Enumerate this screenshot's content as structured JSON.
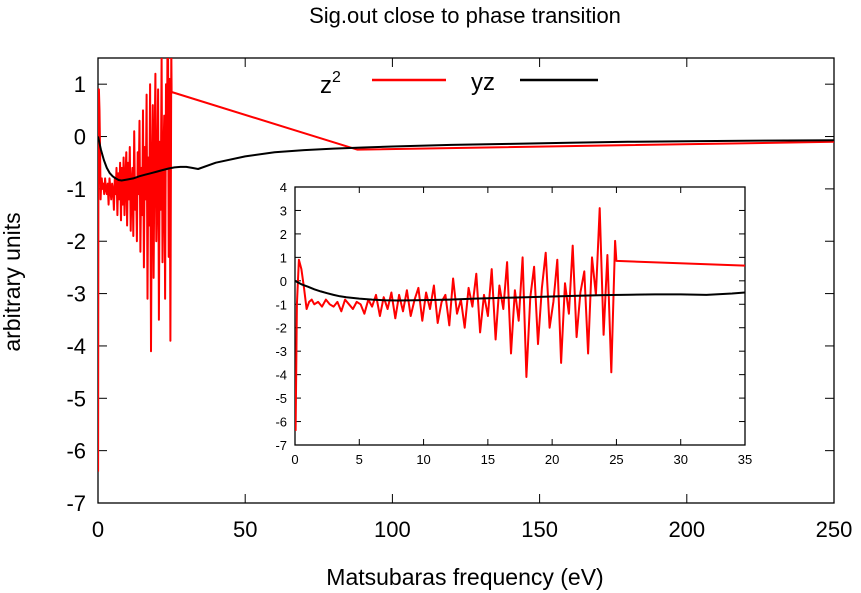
{
  "chart_data": [
    {
      "type": "line",
      "title": "Sig.out close to phase transition",
      "xlabel": "Matsubaras frequency (eV)",
      "ylabel": "arbitrary units",
      "xlim": [
        0,
        250
      ],
      "ylim": [
        -7,
        1.5
      ],
      "xticks": [
        "0",
        "50",
        "100",
        "150",
        "200",
        "250"
      ],
      "yticks": [
        "-7",
        "-6",
        "-5",
        "-4",
        "-3",
        "-2",
        "-1",
        "0",
        "1"
      ],
      "grid": false,
      "legend_position": "top",
      "series": [
        {
          "name": "z",
          "name_superscript": "2",
          "color": "#ff0000",
          "x": [
            0.05,
            0.15,
            0.3,
            0.5,
            0.7,
            0.9,
            1.1,
            1.3,
            1.5,
            1.8,
            2.1,
            2.4,
            2.7,
            3.0,
            3.3,
            3.6,
            3.9,
            4.2,
            4.5,
            4.8,
            5.1,
            5.4,
            5.7,
            6.0,
            6.3,
            6.6,
            6.9,
            7.2,
            7.5,
            7.8,
            8.1,
            8.4,
            8.7,
            9.0,
            9.3,
            9.6,
            9.9,
            10.2,
            10.5,
            10.8,
            11.1,
            11.4,
            11.7,
            12.0,
            12.3,
            12.6,
            12.9,
            13.2,
            13.5,
            13.8,
            14.1,
            14.4,
            14.7,
            15.0,
            15.3,
            15.6,
            15.9,
            16.2,
            16.5,
            16.8,
            17.1,
            17.4,
            17.7,
            18.0,
            18.3,
            18.6,
            18.9,
            19.2,
            19.5,
            19.8,
            20.1,
            20.4,
            20.7,
            21.0,
            21.3,
            21.6,
            21.9,
            22.2,
            22.5,
            22.8,
            23.1,
            23.4,
            23.7,
            24.0,
            24.3,
            24.6,
            24.9,
            25.0,
            88.0,
            250.0
          ],
          "y": [
            -6.4,
            -1.0,
            0.9,
            0.5,
            -0.3,
            -1.2,
            -0.9,
            -0.8,
            -1.0,
            -0.9,
            -1.1,
            -0.8,
            -1.0,
            -1.1,
            -0.9,
            -1.3,
            -0.8,
            -1.0,
            -1.2,
            -0.9,
            -1.0,
            -1.4,
            -0.8,
            -1.1,
            -0.6,
            -1.5,
            -0.7,
            -1.2,
            -0.5,
            -1.6,
            -0.6,
            -1.3,
            -0.4,
            -1.5,
            -0.8,
            -0.3,
            -1.7,
            -0.5,
            -1.2,
            -0.2,
            -1.8,
            -0.9,
            -0.6,
            -1.9,
            0.1,
            -1.4,
            -0.8,
            -2.0,
            -0.3,
            -1.1,
            0.3,
            -2.2,
            -0.6,
            -1.5,
            0.5,
            -2.5,
            -0.2,
            -1.2,
            0.8,
            -3.1,
            -0.4,
            -1.7,
            1.0,
            -4.1,
            -0.7,
            0.6,
            -2.7,
            -0.3,
            1.2,
            -2.0,
            -0.9,
            0.9,
            -3.5,
            -0.1,
            -1.4,
            1.5,
            -2.4,
            -0.5,
            0.4,
            -3.1,
            1.0,
            -0.6,
            3.1,
            -2.3,
            1.1,
            -3.9,
            1.7,
            0.85,
            -0.25,
            -0.1
          ]
        },
        {
          "name": "yz",
          "color": "#000000",
          "x": [
            0.0,
            1,
            2,
            3,
            4,
            5,
            6,
            7,
            8,
            10,
            12,
            14,
            16,
            18,
            20,
            22,
            24,
            26,
            28,
            30,
            32,
            34,
            40,
            50,
            60,
            70,
            80,
            90,
            100,
            120,
            140,
            160,
            180,
            200,
            220,
            250
          ],
          "y": [
            0.0,
            -0.25,
            -0.45,
            -0.6,
            -0.7,
            -0.76,
            -0.8,
            -0.83,
            -0.84,
            -0.82,
            -0.8,
            -0.76,
            -0.73,
            -0.7,
            -0.67,
            -0.64,
            -0.61,
            -0.59,
            -0.58,
            -0.58,
            -0.6,
            -0.62,
            -0.5,
            -0.38,
            -0.3,
            -0.26,
            -0.23,
            -0.21,
            -0.19,
            -0.16,
            -0.14,
            -0.12,
            -0.1,
            -0.09,
            -0.08,
            -0.07
          ]
        }
      ]
    },
    {
      "type": "line",
      "title": "",
      "xlabel": "",
      "ylabel": "",
      "xlim": [
        0,
        35
      ],
      "ylim": [
        -7,
        4
      ],
      "xticks": [
        "0",
        "5",
        "10",
        "15",
        "20",
        "25",
        "30",
        "35"
      ],
      "yticks": [
        "-7",
        "-6",
        "-5",
        "-4",
        "-3",
        "-2",
        "-1",
        "0",
        "1",
        "2",
        "3",
        "4"
      ],
      "grid": false,
      "series": [
        {
          "color": "#ff0000",
          "x": [
            0.05,
            0.15,
            0.3,
            0.5,
            0.7,
            0.9,
            1.1,
            1.3,
            1.5,
            1.8,
            2.1,
            2.4,
            2.7,
            3.0,
            3.3,
            3.6,
            3.9,
            4.2,
            4.5,
            4.8,
            5.1,
            5.4,
            5.7,
            6.0,
            6.3,
            6.6,
            6.9,
            7.2,
            7.5,
            7.8,
            8.1,
            8.4,
            8.7,
            9.0,
            9.3,
            9.6,
            9.9,
            10.2,
            10.5,
            10.8,
            11.1,
            11.4,
            11.7,
            12.0,
            12.3,
            12.6,
            12.9,
            13.2,
            13.5,
            13.8,
            14.1,
            14.4,
            14.7,
            15.0,
            15.3,
            15.6,
            15.9,
            16.2,
            16.5,
            16.8,
            17.1,
            17.4,
            17.7,
            18.0,
            18.3,
            18.6,
            18.9,
            19.2,
            19.5,
            19.8,
            20.1,
            20.4,
            20.7,
            21.0,
            21.3,
            21.6,
            21.9,
            22.2,
            22.5,
            22.8,
            23.1,
            23.4,
            23.7,
            24.0,
            24.3,
            24.6,
            24.9,
            25.0,
            35.0
          ],
          "y": [
            -6.4,
            -1.0,
            0.9,
            0.5,
            -0.3,
            -1.2,
            -0.9,
            -0.8,
            -1.0,
            -0.9,
            -1.1,
            -0.8,
            -1.0,
            -1.1,
            -0.9,
            -1.3,
            -0.8,
            -1.0,
            -1.2,
            -0.9,
            -1.0,
            -1.4,
            -0.8,
            -1.1,
            -0.6,
            -1.5,
            -0.7,
            -1.2,
            -0.5,
            -1.6,
            -0.6,
            -1.3,
            -0.4,
            -1.5,
            -0.8,
            -0.3,
            -1.7,
            -0.5,
            -1.2,
            -0.2,
            -1.8,
            -0.9,
            -0.6,
            -1.9,
            0.1,
            -1.4,
            -0.8,
            -2.0,
            -0.3,
            -1.1,
            0.3,
            -2.2,
            -0.6,
            -1.5,
            0.5,
            -2.5,
            -0.2,
            -1.2,
            0.8,
            -3.1,
            -0.4,
            -1.7,
            1.0,
            -4.1,
            -0.7,
            0.6,
            -2.7,
            -0.3,
            1.2,
            -2.0,
            -0.9,
            0.9,
            -3.5,
            -0.1,
            -1.4,
            1.5,
            -2.4,
            -0.5,
            0.4,
            -3.1,
            1.0,
            -0.6,
            3.1,
            -2.3,
            1.1,
            -3.9,
            1.7,
            0.85,
            0.65
          ]
        },
        {
          "color": "#000000",
          "x": [
            0.0,
            0.5,
            1,
            1.5,
            2,
            2.5,
            3,
            3.5,
            4,
            5,
            6,
            7,
            8,
            10,
            12,
            14,
            16,
            18,
            20,
            22,
            24,
            26,
            28,
            30,
            32,
            34,
            35
          ],
          "y": [
            0.0,
            -0.15,
            -0.25,
            -0.36,
            -0.45,
            -0.53,
            -0.6,
            -0.66,
            -0.7,
            -0.76,
            -0.8,
            -0.83,
            -0.84,
            -0.82,
            -0.8,
            -0.76,
            -0.73,
            -0.7,
            -0.67,
            -0.64,
            -0.61,
            -0.59,
            -0.58,
            -0.58,
            -0.6,
            -0.54,
            -0.5
          ]
        }
      ]
    }
  ]
}
